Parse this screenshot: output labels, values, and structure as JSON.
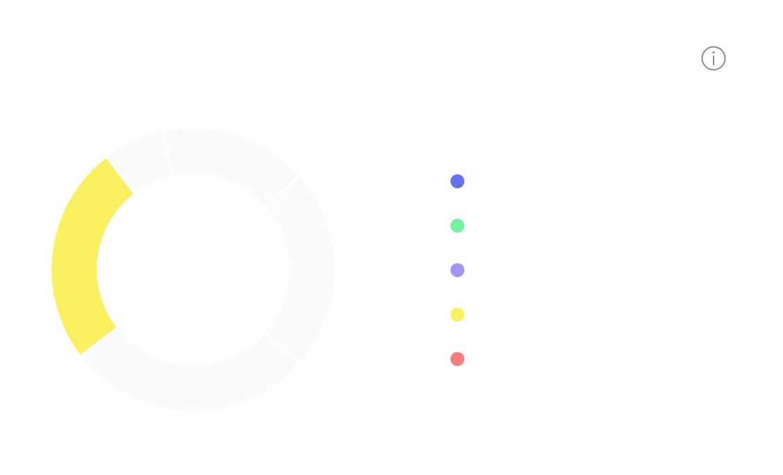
{
  "chart_data": {
    "type": "pie",
    "donut": true,
    "categories": [
      null,
      null,
      null,
      null,
      null
    ],
    "values": [
      17,
      23,
      28,
      25,
      7
    ],
    "colors": [
      "#6670f5",
      "#73f59f",
      "#a594f5",
      "#fbf05f",
      "#f87b7b"
    ],
    "highlighted": 3
  }
}
